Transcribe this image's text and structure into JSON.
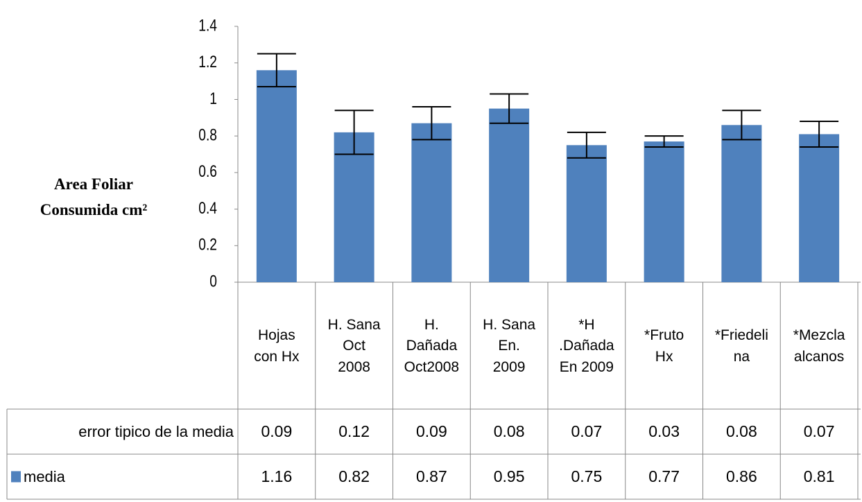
{
  "chart_data": {
    "type": "bar",
    "y_label": "Area Foliar Consumida cm²",
    "categories": [
      "Hojas\ncon Hx",
      "H. Sana\nOct\n2008",
      "H.\nDañada\nOct2008",
      "H. Sana\nEn.\n2009",
      "*H\n.Dañada\nEn 2009",
      "*Fruto\nHx",
      "*Friedeli\nna",
      "*Mezcla\nalcanos"
    ],
    "series": [
      {
        "name": "error tipico de la media",
        "values": [
          0.09,
          0.12,
          0.09,
          0.08,
          0.07,
          0.03,
          0.08,
          0.07
        ]
      },
      {
        "name": "media",
        "color": "#4f81bd",
        "values": [
          1.16,
          0.82,
          0.87,
          0.95,
          0.75,
          0.77,
          0.86,
          0.81
        ]
      }
    ],
    "ylim": [
      0,
      1.4
    ],
    "yticks": [
      0,
      0.2,
      0.4,
      0.6,
      0.8,
      1,
      1.2,
      1.4
    ]
  }
}
